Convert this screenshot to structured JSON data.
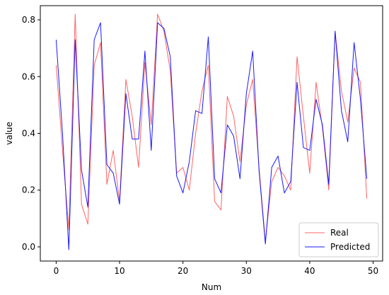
{
  "chart_data": {
    "type": "line",
    "xlabel": "Num",
    "ylabel": "value",
    "xlim": [
      -2.5,
      51.5
    ],
    "ylim": [
      -0.05,
      0.85
    ],
    "x_ticks": [
      0,
      10,
      20,
      30,
      40,
      50
    ],
    "y_ticks": [
      0.0,
      0.2,
      0.4,
      0.6,
      0.8
    ],
    "x_tick_labels": [
      "0",
      "10",
      "20",
      "30",
      "40",
      "50"
    ],
    "y_tick_labels": [
      "0.0",
      "0.2",
      "0.4",
      "0.6",
      "0.8"
    ],
    "grid": false,
    "legend_position": "lower right",
    "x": [
      0,
      1,
      2,
      3,
      4,
      5,
      6,
      7,
      8,
      9,
      10,
      11,
      12,
      13,
      14,
      15,
      16,
      17,
      18,
      19,
      20,
      21,
      22,
      23,
      24,
      25,
      26,
      27,
      28,
      29,
      30,
      31,
      32,
      33,
      34,
      35,
      36,
      37,
      38,
      39,
      40,
      41,
      42,
      43,
      44,
      45,
      46,
      47,
      48,
      49
    ],
    "series": [
      {
        "name": "Real",
        "color": "#ff6464",
        "values": [
          0.64,
          0.34,
          0.06,
          0.82,
          0.15,
          0.08,
          0.64,
          0.72,
          0.22,
          0.34,
          0.16,
          0.59,
          0.46,
          0.28,
          0.65,
          0.43,
          0.82,
          0.76,
          0.62,
          0.26,
          0.28,
          0.2,
          0.4,
          0.55,
          0.64,
          0.16,
          0.13,
          0.53,
          0.46,
          0.3,
          0.5,
          0.59,
          0.28,
          0.02,
          0.23,
          0.28,
          0.25,
          0.2,
          0.67,
          0.46,
          0.26,
          0.58,
          0.42,
          0.2,
          0.76,
          0.55,
          0.44,
          0.63,
          0.58,
          0.17
        ]
      },
      {
        "name": "Predicted",
        "color": "#1a1aff",
        "values": [
          0.73,
          0.4,
          -0.01,
          0.73,
          0.27,
          0.14,
          0.73,
          0.79,
          0.29,
          0.26,
          0.15,
          0.54,
          0.38,
          0.38,
          0.69,
          0.34,
          0.79,
          0.77,
          0.67,
          0.25,
          0.19,
          0.3,
          0.48,
          0.47,
          0.74,
          0.24,
          0.19,
          0.43,
          0.39,
          0.24,
          0.54,
          0.69,
          0.27,
          0.01,
          0.28,
          0.32,
          0.19,
          0.23,
          0.58,
          0.35,
          0.34,
          0.52,
          0.43,
          0.22,
          0.76,
          0.48,
          0.37,
          0.72,
          0.52,
          0.24
        ]
      }
    ]
  }
}
